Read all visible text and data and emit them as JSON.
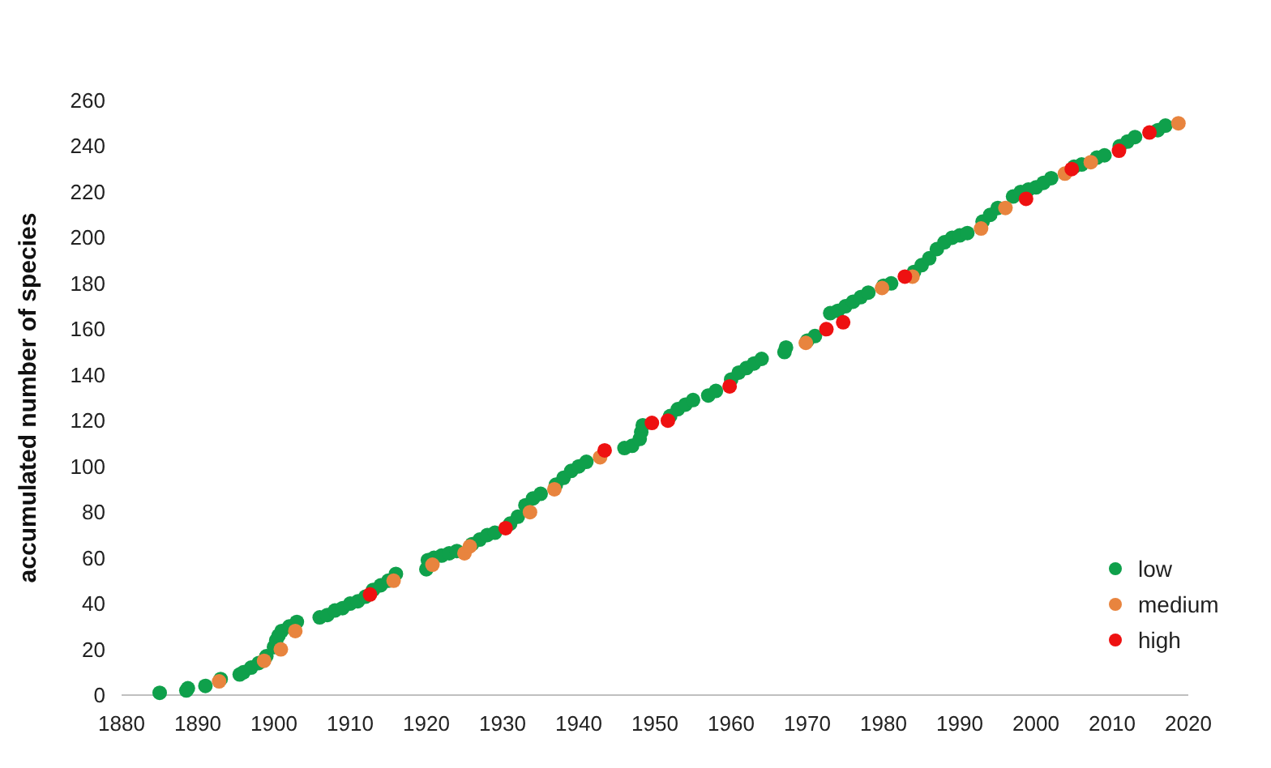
{
  "chart_data": {
    "type": "scatter",
    "ylabel": "accumulated number of species",
    "xlim": [
      1880,
      2020
    ],
    "ylim": [
      0,
      260
    ],
    "xticks": [
      1880,
      1890,
      1900,
      1910,
      1920,
      1930,
      1940,
      1950,
      1960,
      1970,
      1980,
      1990,
      2000,
      2010,
      2020
    ],
    "yticks": [
      0,
      20,
      40,
      60,
      80,
      100,
      120,
      140,
      160,
      180,
      200,
      220,
      240,
      260
    ],
    "grid": false,
    "legend": "bottom right",
    "marker": "circle",
    "series": [
      {
        "name": "low",
        "color": "#0fa04b",
        "x": [
          1885,
          1888.5,
          1888.7,
          1891,
          1893,
          1895.5,
          1896,
          1897,
          1898,
          1899,
          1900,
          1900.3,
          1900.6,
          1901,
          1902,
          1903,
          1906,
          1907,
          1908,
          1909,
          1910,
          1911,
          1912,
          1913,
          1914,
          1915,
          1916,
          1920,
          1920.2,
          1921,
          1922,
          1923,
          1924,
          1926,
          1927,
          1928,
          1929,
          1931,
          1932,
          1933,
          1934,
          1935,
          1937,
          1938,
          1939,
          1940,
          1941,
          1946,
          1947,
          1948,
          1948.2,
          1948.4,
          1952,
          1953,
          1954,
          1955,
          1957,
          1958,
          1960,
          1961,
          1962,
          1963,
          1964,
          1967,
          1967.2,
          1970,
          1971,
          1973,
          1974,
          1975,
          1976,
          1977,
          1978,
          1980,
          1981,
          1984,
          1985,
          1986,
          1987,
          1988,
          1989,
          1990,
          1991,
          1993,
          1994,
          1995,
          1997,
          1998,
          1999,
          2000,
          2001,
          2002,
          2005,
          2006,
          2008,
          2009,
          2011,
          2012,
          2013,
          2016,
          2017
        ],
        "values": [
          1,
          2,
          3,
          4,
          7,
          9,
          10,
          12,
          14,
          17,
          21,
          24,
          26,
          28,
          30,
          32,
          34,
          35,
          37,
          38,
          40,
          41,
          43,
          46,
          48,
          50,
          53,
          55,
          59,
          60,
          61,
          62,
          63,
          66,
          68,
          70,
          71,
          75,
          78,
          83,
          86,
          88,
          92,
          95,
          98,
          100,
          102,
          108,
          109,
          112,
          115,
          118,
          122,
          125,
          127,
          129,
          131,
          133,
          138,
          141,
          143,
          145,
          147,
          150,
          152,
          155,
          157,
          167,
          168,
          170,
          172,
          174,
          176,
          179,
          180,
          185,
          188,
          191,
          195,
          198,
          200,
          201,
          202,
          207,
          210,
          213,
          218,
          220,
          221,
          222,
          224,
          226,
          231,
          232,
          235,
          236,
          240,
          242,
          244,
          247,
          249
        ]
      },
      {
        "name": "medium",
        "color": "#e8843e",
        "x": [
          1892.8,
          1898.7,
          1900.9,
          1902.8,
          1915.7,
          1920.8,
          1925,
          1925.7,
          1933.6,
          1936.8,
          1942.8,
          1969.8,
          1979.8,
          1983.8,
          1992.8,
          1996,
          2003.8,
          2007.2,
          2018.7
        ],
        "values": [
          6,
          15,
          20,
          28,
          50,
          57,
          62,
          65,
          80,
          90,
          104,
          154,
          178,
          183,
          204,
          213,
          228,
          233,
          250
        ]
      },
      {
        "name": "high",
        "color": "#ee1111",
        "x": [
          1912.6,
          1930.4,
          1943.4,
          1949.6,
          1951.7,
          1959.8,
          1972.5,
          1974.7,
          1982.8,
          1998.7,
          2004.7,
          2010.9,
          2014.9
        ],
        "values": [
          44,
          73,
          107,
          119,
          120,
          135,
          160,
          163,
          183,
          217,
          230,
          238,
          246
        ]
      }
    ]
  }
}
